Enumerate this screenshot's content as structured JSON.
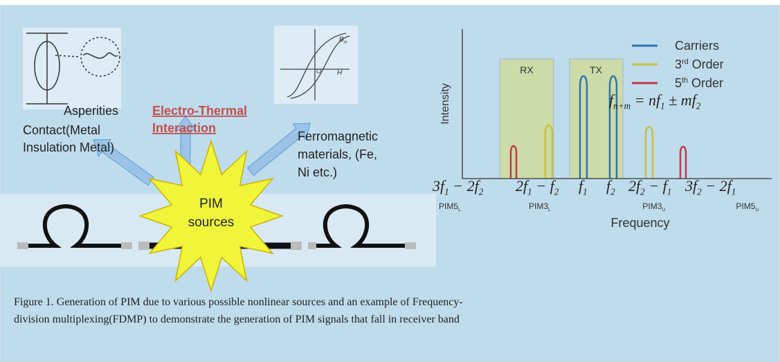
{
  "figure": {
    "left": {
      "contact_inset": {
        "label": "Asperities"
      },
      "contact_label": [
        "Contact(Metal",
        "Insulation Metal)"
      ],
      "thermal_label": [
        "Electro-Thermal",
        "Interaction"
      ],
      "ferro_inset": {
        "b_label": [
          "B",
          {
            "sub": "m"
          }
        ],
        "h_label": "H",
        "o_label": "O"
      },
      "ferro_label": [
        "Ferromagnetic",
        "materials, (Fe,",
        "Ni etc.)"
      ],
      "source_label": [
        "PIM",
        "sources"
      ]
    },
    "spectrum": {
      "y_label": "Intensity",
      "x_label": "Frequency",
      "bands": [
        "RX",
        "TX"
      ],
      "legend": [
        {
          "label": [
            "Carriers"
          ],
          "color": "#2e74b5"
        },
        {
          "label": [
            "3",
            {
              "sup": "rd"
            },
            " Order"
          ],
          "color": "#c9c040"
        },
        {
          "label": [
            "5",
            {
              "sup": "th"
            },
            " Order"
          ],
          "color": "#c0394a"
        }
      ],
      "formula": [
        "f",
        {
          "sub": "n+m"
        },
        " = nf",
        {
          "sub": "1"
        },
        " ± mf",
        {
          "sub": "2"
        }
      ],
      "freq_labels": [
        [
          "3f",
          {
            "sub": "1"
          },
          " − 2f",
          {
            "sub": "2"
          }
        ],
        [
          "2f",
          {
            "sub": "1"
          },
          " − f",
          {
            "sub": "2"
          }
        ],
        [
          "f",
          {
            "sub": "1"
          }
        ],
        [
          "f",
          {
            "sub": "2"
          }
        ],
        [
          "2f",
          {
            "sub": "2"
          },
          " − f",
          {
            "sub": "1"
          }
        ],
        [
          "3f",
          {
            "sub": "2"
          },
          " − 2f",
          {
            "sub": "1"
          }
        ]
      ],
      "pim_labels": [
        [
          "PIM5",
          {
            "sub": "L"
          }
        ],
        [
          "PIM3",
          {
            "sub": "L"
          }
        ],
        [
          "PIM3",
          {
            "sub": "U"
          }
        ],
        [
          "PIM5",
          {
            "sub": "U"
          }
        ]
      ]
    },
    "caption": [
      "Figure 1. Generation of PIM due to various possible nonlinear sources  and an example of Frequency-",
      "division multiplexing(FDMP) to demonstrate the generation of PIM  signals  that fall in receiver band"
    ]
  }
}
